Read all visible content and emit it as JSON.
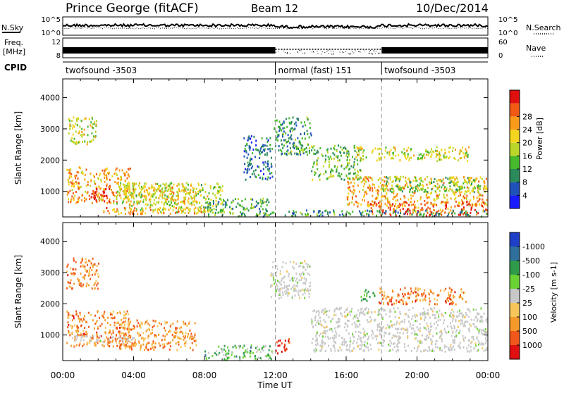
{
  "header": {
    "site": "Prince George (fitACF)",
    "beam": "Beam 12",
    "date": "10/Dec/2014"
  },
  "summary_panels": {
    "nsky_label": "N.Sky",
    "nsky_ticks": [
      "10^5",
      "10^0"
    ],
    "nsearch_label": "N.Search",
    "nsearch_ticks": [
      "10^5",
      "10^0"
    ],
    "freq_label_1": "Freq.",
    "freq_label_2": "[MHz]",
    "freq_ticks": [
      "12",
      "8"
    ],
    "nave_label": "Nave",
    "nave_ticks": [
      "60",
      "0"
    ],
    "cpid_label": "CPID",
    "cpid_segments": [
      {
        "label": "twofsound -3503",
        "start_hour": 0,
        "end_hour": 12
      },
      {
        "label": "normal (fast) 151",
        "start_hour": 12,
        "end_hour": 18
      },
      {
        "label": "twofsound -3503",
        "start_hour": 18,
        "end_hour": 24
      }
    ]
  },
  "chart_data": [
    {
      "type": "heatmap",
      "title": "",
      "xlabel": "",
      "ylabel": "Slant Range [km]",
      "xlim_hours": [
        0,
        24
      ],
      "ylim_km": [
        180,
        4600
      ],
      "yticks": [
        1000,
        2000,
        3000,
        4000
      ],
      "colorbar_label": "Power [dB]",
      "colorbar_ticks": [
        "4",
        "8",
        "12",
        "16",
        "20",
        "24",
        "28"
      ],
      "colorbar_colors": [
        "#1a1aff",
        "#1f52b8",
        "#2a8a5a",
        "#46b92d",
        "#b9d629",
        "#f3d51f",
        "#fa9a1a",
        "#f05a14",
        "#e01010"
      ],
      "mode_changes_hours": [
        12,
        18
      ],
      "regions": [
        {
          "t": [
            0.2,
            3.8
          ],
          "r": [
            650,
            1800
          ],
          "level": 0.7
        },
        {
          "t": [
            1.5,
            2.6
          ],
          "r": [
            700,
            1200
          ],
          "level": 0.95
        },
        {
          "t": [
            0.3,
            1.9
          ],
          "r": [
            2500,
            3400
          ],
          "level": 0.55
        },
        {
          "t": [
            3.0,
            9.0
          ],
          "r": [
            350,
            1300
          ],
          "level": 0.5
        },
        {
          "t": [
            3.5,
            7.5
          ],
          "r": [
            600,
            1300
          ],
          "level": 0.62
        },
        {
          "t": [
            2.0,
            8.0
          ],
          "r": [
            300,
            520
          ],
          "level": 0.72
        },
        {
          "t": [
            8.0,
            11.6
          ],
          "r": [
            200,
            800
          ],
          "level": 0.35
        },
        {
          "t": [
            10.2,
            11.8
          ],
          "r": [
            1400,
            2800
          ],
          "level": 0.25
        },
        {
          "t": [
            11.9,
            14.0
          ],
          "r": [
            2200,
            3400
          ],
          "level": 0.3
        },
        {
          "t": [
            12.6,
            13.7
          ],
          "r": [
            2200,
            2400
          ],
          "level": 0.45
        },
        {
          "t": [
            14.0,
            16.8
          ],
          "r": [
            1400,
            2500
          ],
          "level": 0.4
        },
        {
          "t": [
            16.0,
            24.0
          ],
          "r": [
            550,
            1500
          ],
          "level": 0.68
        },
        {
          "t": [
            18.0,
            24.0
          ],
          "r": [
            1000,
            1500
          ],
          "level": 0.45
        },
        {
          "t": [
            17.0,
            24.0
          ],
          "r": [
            250,
            700
          ],
          "level": 0.82
        },
        {
          "t": [
            16.5,
            22.9
          ],
          "r": [
            2000,
            2450
          ],
          "level": 0.55
        },
        {
          "t": [
            11.5,
            24.0
          ],
          "r": [
            180,
            420
          ],
          "level": 0.3
        }
      ]
    },
    {
      "type": "heatmap",
      "title": "",
      "xlabel": "Time UT",
      "ylabel": "Slant Range [km]",
      "xlim_hours": [
        0,
        24
      ],
      "ylim_km": [
        180,
        4600
      ],
      "xticks": [
        "00:00",
        "04:00",
        "08:00",
        "12:00",
        "16:00",
        "20:00",
        "00:00"
      ],
      "yticks": [
        1000,
        2000,
        3000,
        4000
      ],
      "colorbar_label": "Velocity [m s-1]",
      "colorbar_ticks": [
        "1000",
        "500",
        "100",
        "25",
        "-25",
        "-100",
        "-500",
        "-1000"
      ],
      "colorbar_colors": [
        "#1f3fc8",
        "#2e6f9b",
        "#2f9a4a",
        "#6ad233",
        "#c8c8c8",
        "#f6c65a",
        "#f59a2a",
        "#f0571a",
        "#e01010"
      ],
      "mode_changes_hours": [
        12,
        18
      ],
      "regions": [
        {
          "t": [
            0.2,
            3.8
          ],
          "r": [
            650,
            1800
          ],
          "level": 0.78
        },
        {
          "t": [
            0.2,
            2.0
          ],
          "r": [
            2500,
            3500
          ],
          "level": 0.78
        },
        {
          "t": [
            3.0,
            7.5
          ],
          "r": [
            550,
            1500
          ],
          "level": 0.74
        },
        {
          "t": [
            0.5,
            4.0
          ],
          "r": [
            800,
            1000
          ],
          "level": 0.5
        },
        {
          "t": [
            8.0,
            11.8
          ],
          "r": [
            200,
            700
          ],
          "level": 0.35
        },
        {
          "t": [
            11.7,
            14.0
          ],
          "r": [
            2200,
            3400
          ],
          "level": 0.5
        },
        {
          "t": [
            14.0,
            24.0
          ],
          "r": [
            500,
            1900
          ],
          "level": 0.5
        },
        {
          "t": [
            16.8,
            17.6
          ],
          "r": [
            2100,
            2500
          ],
          "level": 0.35
        },
        {
          "t": [
            17.8,
            22.8
          ],
          "r": [
            2000,
            2550
          ],
          "level": 0.78
        },
        {
          "t": [
            12.0,
            12.8
          ],
          "r": [
            400,
            900
          ],
          "level": 0.95
        }
      ]
    }
  ]
}
